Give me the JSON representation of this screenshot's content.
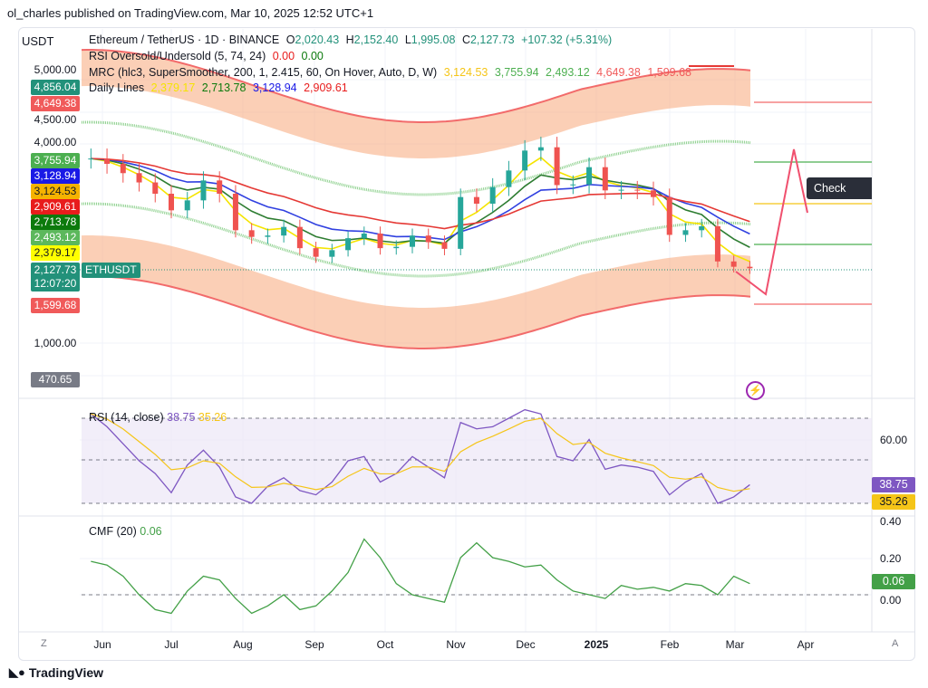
{
  "publisher": "ol_charles published on TradingView.com, Mar 10, 2025 12:52 UTC+1",
  "currency": "USDT",
  "legend": {
    "symbol": "Ethereum / TetherUS · 1D · BINANCE",
    "open_label": "O",
    "open": "2,020.43",
    "high_label": "H",
    "high": "2,152.40",
    "low_label": "L",
    "low": "1,995.08",
    "close_label": "C",
    "close": "2,127.73",
    "change": "+107.32 (+5.31%)",
    "rsi_os": {
      "name": "RSI Oversold/Undersold (5, 74, 24)",
      "v1": "0.00",
      "v2": "0.00"
    },
    "mrc": {
      "name": "MRC (hlc3, SuperSmoother, 200, 1, 2.415, 60, On Hover, Auto, D, W)",
      "values": [
        "3,124.53",
        "3,755.94",
        "2,493.12",
        "4,649.38",
        "1,599.68"
      ]
    },
    "daily_lines": {
      "name": "Daily Lines",
      "values": [
        "2,379.17",
        "2,713.78",
        "3,128.94",
        "2,909.61"
      ]
    }
  },
  "price_axis": {
    "ticks": [
      "5,000.00",
      "4,500.00",
      "4,000.00",
      "1,000.00"
    ],
    "tags": [
      {
        "value": "4,856.04",
        "color": "#22917a"
      },
      {
        "value": "4,649.38",
        "color": "#f05a5a"
      },
      {
        "value": "3,755.94",
        "color": "#4caf50"
      },
      {
        "value": "3,128.94",
        "color": "#1a1ae6"
      },
      {
        "value": "3,124.53",
        "color": "#f5b300"
      },
      {
        "value": "2,909.61",
        "color": "#e81c1c"
      },
      {
        "value": "2,713.78",
        "color": "#0c7a0c"
      },
      {
        "value": "2,493.12",
        "color": "#5cb85c"
      },
      {
        "value": "2,379.17",
        "color": "#ffff00"
      },
      {
        "value": "1,599.68",
        "color": "#f05a5a"
      }
    ],
    "current_price": "2,127.73",
    "countdown": "12:07:20",
    "bottom_tag": "470.65",
    "symbol_tag": "ETHUSDT"
  },
  "check_mtf": "Check MTF",
  "rsi": {
    "title": "RSI (14, close)",
    "value": "38.75",
    "ma": "35.26",
    "tick": "60.00",
    "color": "#7e57c2",
    "ma_color": "#f5c518"
  },
  "cmf": {
    "title": "CMF (20)",
    "value": "0.06",
    "ticks": [
      "0.40",
      "0.20",
      "0.00"
    ],
    "color": "#43a047"
  },
  "time_axis": [
    "Jun",
    "Jul",
    "Aug",
    "Sep",
    "Oct",
    "Nov",
    "Dec",
    "2025",
    "Feb",
    "Mar",
    "Apr"
  ],
  "corner_left": "Z",
  "corner_right": "A",
  "brand": "TradingView",
  "chart_data": {
    "type": "candlestick",
    "title": "Ethereum / TetherUS · 1D · BINANCE",
    "ylabel": "USDT",
    "x": [
      "2024-05-27",
      "2024-06-03",
      "2024-06-10",
      "2024-06-17",
      "2024-06-24",
      "2024-07-01",
      "2024-07-08",
      "2024-07-15",
      "2024-07-22",
      "2024-07-29",
      "2024-08-05",
      "2024-08-12",
      "2024-08-19",
      "2024-08-26",
      "2024-09-02",
      "2024-09-09",
      "2024-09-16",
      "2024-09-23",
      "2024-09-30",
      "2024-10-07",
      "2024-10-14",
      "2024-10-21",
      "2024-10-28",
      "2024-11-04",
      "2024-11-11",
      "2024-11-18",
      "2024-11-25",
      "2024-12-02",
      "2024-12-09",
      "2024-12-16",
      "2024-12-23",
      "2024-12-30",
      "2025-01-06",
      "2025-01-13",
      "2025-01-20",
      "2025-01-27",
      "2025-02-03",
      "2025-02-10",
      "2025-02-17",
      "2025-02-24",
      "2025-03-03",
      "2025-03-10"
    ],
    "close": [
      3780,
      3700,
      3560,
      3420,
      3250,
      3000,
      3150,
      3450,
      3250,
      2700,
      2600,
      2620,
      2750,
      2430,
      2300,
      2400,
      2580,
      2650,
      2430,
      2450,
      2620,
      2520,
      2420,
      3200,
      3100,
      3350,
      3600,
      3900,
      3950,
      3380,
      3390,
      3650,
      3300,
      3310,
      3300,
      3200,
      2630,
      2700,
      2760,
      2230,
      2150,
      2127.73
    ],
    "rsi": [
      72,
      66,
      58,
      50,
      44,
      35,
      48,
      55,
      47,
      33,
      30,
      38,
      42,
      36,
      34,
      40,
      50,
      52,
      40,
      44,
      52,
      47,
      42,
      68,
      65,
      66,
      70,
      74,
      72,
      52,
      50,
      60,
      46,
      48,
      47,
      45,
      34,
      40,
      44,
      30,
      33,
      38.75
    ],
    "cmf": [
      0.18,
      0.16,
      0.1,
      0.0,
      -0.08,
      -0.1,
      0.02,
      0.1,
      0.08,
      -0.02,
      -0.1,
      -0.06,
      0.0,
      -0.08,
      -0.06,
      0.02,
      0.12,
      0.3,
      0.2,
      0.06,
      0.0,
      -0.02,
      -0.04,
      0.2,
      0.28,
      0.2,
      0.18,
      0.15,
      0.16,
      0.08,
      0.02,
      0.0,
      -0.02,
      0.05,
      0.03,
      0.04,
      0.02,
      0.06,
      0.05,
      0.0,
      0.1,
      0.06
    ],
    "ylim": [
      470,
      5000
    ],
    "scale": "linear",
    "grid": true
  }
}
